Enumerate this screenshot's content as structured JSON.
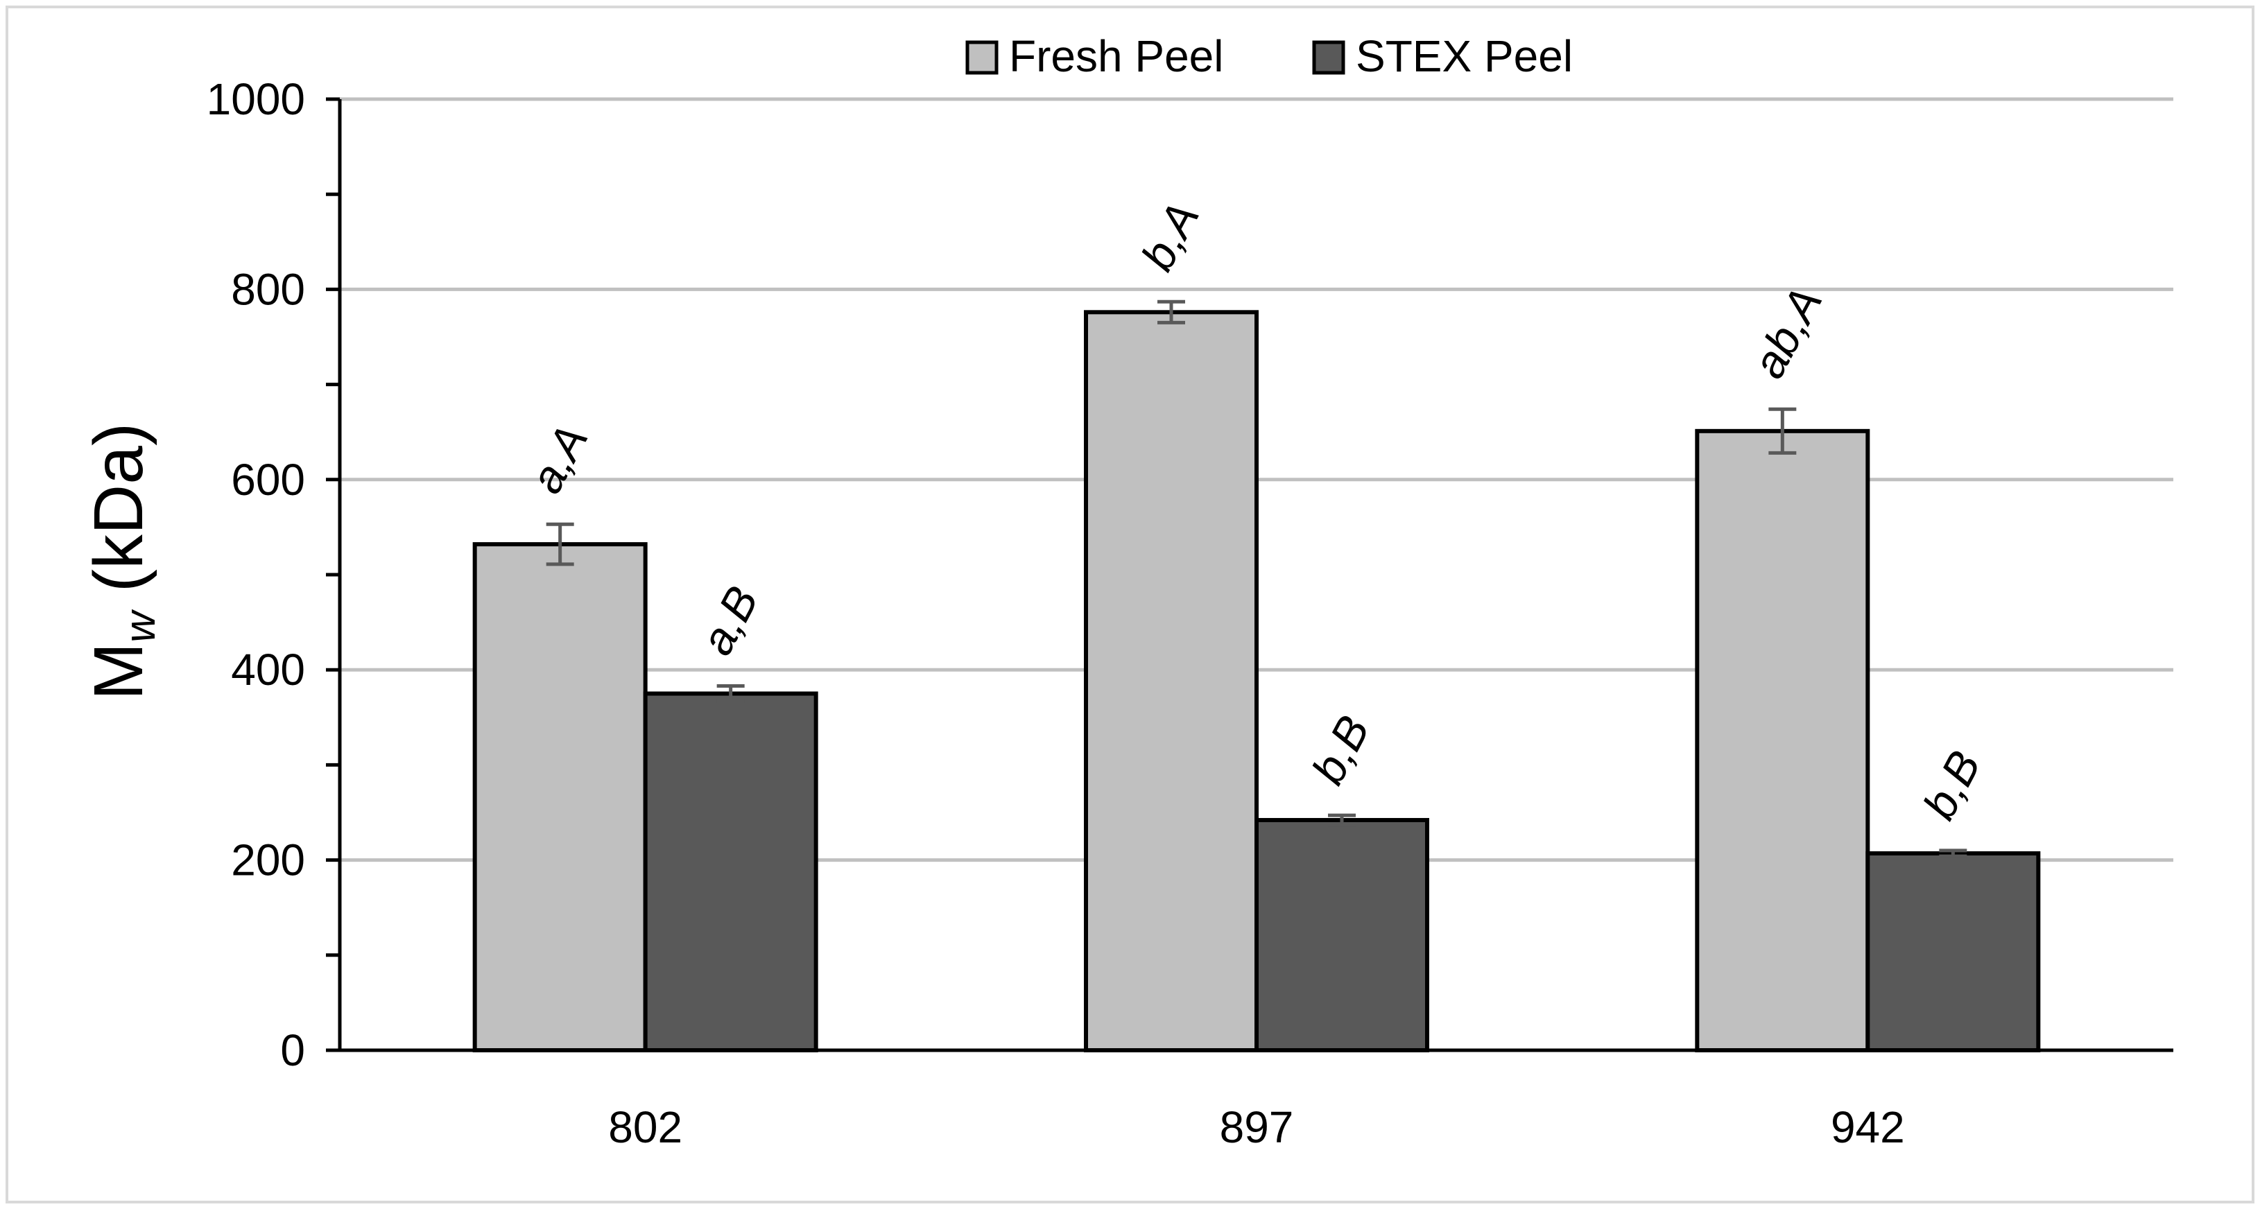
{
  "chart_data": {
    "type": "bar",
    "categories": [
      "802",
      "897",
      "942"
    ],
    "series": [
      {
        "name": "Fresh Peel",
        "values": [
          532,
          776,
          651
        ],
        "errors": [
          21,
          11,
          23
        ],
        "annotations": [
          "a,A",
          "b,A",
          "ab,A"
        ],
        "color": "#c0c0c0"
      },
      {
        "name": "STEX Peel",
        "values": [
          375,
          242,
          207
        ],
        "errors": [
          8,
          5,
          3
        ],
        "annotations": [
          "a,B",
          "b,B",
          "b,B"
        ],
        "color": "#595959"
      }
    ],
    "ylabel": {
      "main": "M",
      "subscript": "w",
      "unit": " (kDa)"
    },
    "xlabel": "",
    "ylim": [
      0,
      1000
    ],
    "yticks": [
      0,
      200,
      400,
      600,
      800,
      1000
    ],
    "grid": true,
    "legend_position": "top-center",
    "colors": {
      "gridline": "#c0c0c0",
      "axis": "#000000",
      "bar_outline": "#000000",
      "error_bar": "#595959",
      "frame": "#d9d9d9"
    }
  }
}
